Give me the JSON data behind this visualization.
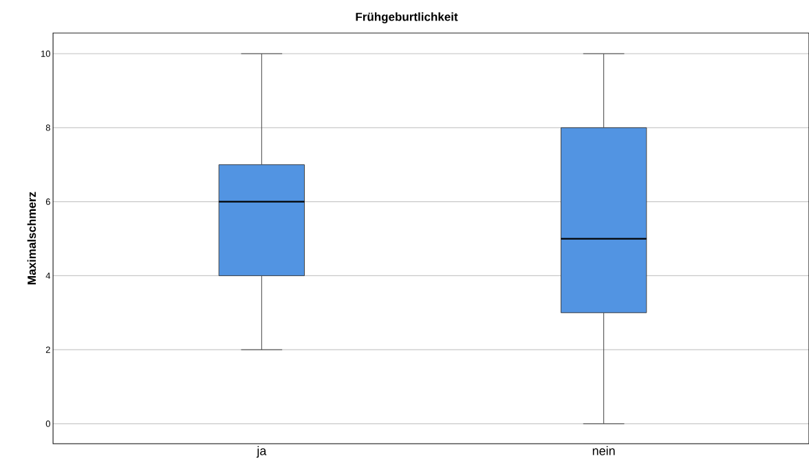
{
  "chart_data": {
    "type": "box",
    "title": "Frühgeburtlichkeit",
    "ylabel": "Maximalschmerz",
    "categories": [
      "ja",
      "nein"
    ],
    "boxes": [
      {
        "low": 2,
        "q1": 4,
        "median": 6,
        "q3": 7,
        "high": 10
      },
      {
        "low": 0,
        "q1": 3,
        "median": 5,
        "q3": 8,
        "high": 10
      }
    ],
    "color": "#5294e2",
    "ylim": [
      -0.54,
      10.56
    ],
    "yticks": [
      0,
      2,
      4,
      6,
      8,
      10
    ],
    "grid": "y"
  }
}
